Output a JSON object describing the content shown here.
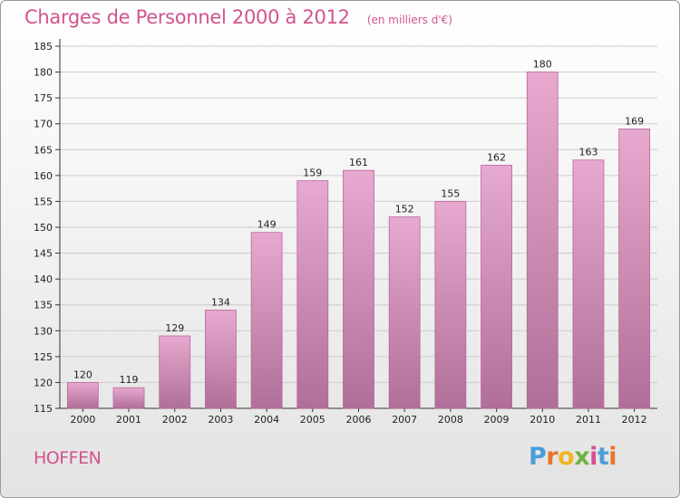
{
  "title": "Charges de Personnel 2000 à 2012",
  "unit": "(en milliers d'€)",
  "commune": "HOFFEN",
  "brand": "Proxiti",
  "colors": {
    "title": "#d2538f",
    "bar_top": "#e7a9cf",
    "bar_bottom": "#b06f98",
    "grid": "#cccccc"
  },
  "chart_data": {
    "type": "bar",
    "categories": [
      "2000",
      "2001",
      "2002",
      "2003",
      "2004",
      "2005",
      "2006",
      "2007",
      "2008",
      "2009",
      "2010",
      "2011",
      "2012"
    ],
    "values": [
      120,
      119,
      129,
      134,
      149,
      159,
      161,
      152,
      155,
      162,
      180,
      163,
      169
    ],
    "ylim": [
      115,
      185
    ],
    "yticks": [
      115,
      120,
      125,
      130,
      135,
      140,
      145,
      150,
      155,
      160,
      165,
      170,
      175,
      180,
      185
    ],
    "grid": true,
    "legend": "none"
  }
}
